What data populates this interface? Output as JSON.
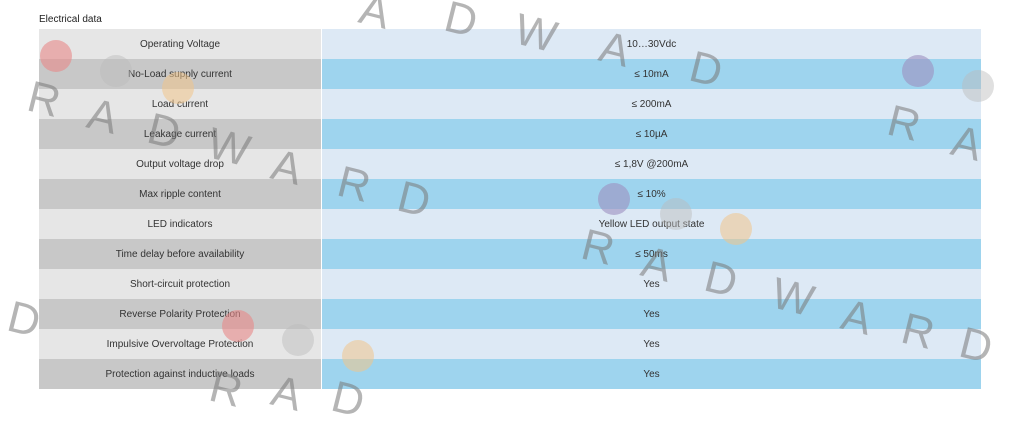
{
  "section_title": "Electrical data",
  "rows": [
    {
      "label": "Operating Voltage",
      "value": "10…30Vdc"
    },
    {
      "label": "No-Load supply current",
      "value": "≤ 10mA"
    },
    {
      "label": "Load current",
      "value": "≤ 200mA"
    },
    {
      "label": "Leakage current",
      "value": "≤ 10µA"
    },
    {
      "label": "Output voltage drop",
      "value": "≤ 1,8V @200mA"
    },
    {
      "label": "Max ripple content",
      "value": "≤ 10%"
    },
    {
      "label": "LED indicators",
      "value": "Yellow LED output state"
    },
    {
      "label": "Time delay before availability",
      "value": "≤ 50ms"
    },
    {
      "label": "Short-circuit protection",
      "value": "Yes"
    },
    {
      "label": "Reverse Polarity Protection",
      "value": "Yes"
    },
    {
      "label": "Impulsive Overvoltage Protection",
      "value": "Yes"
    },
    {
      "label": "Protection against inductive loads",
      "value": "Yes"
    }
  ],
  "watermark": {
    "text": "RADWARD",
    "colors": [
      "#e88888",
      "#bbbbbb",
      "#f1c48a",
      "#9d8fbf"
    ]
  }
}
